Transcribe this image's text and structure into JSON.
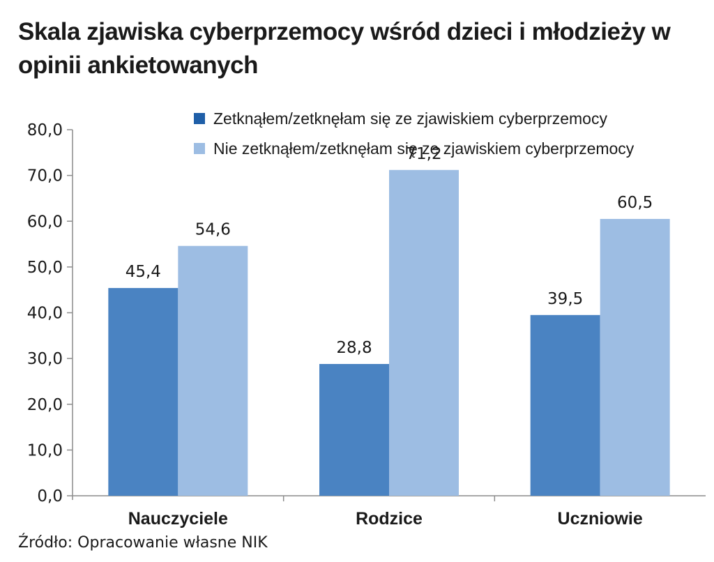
{
  "chart_data": {
    "type": "bar",
    "title": "Skala zjawiska cyberprzemocy wśród dzieci i młodzieży w opinii ankietowanych",
    "xlabel": "",
    "ylabel": "",
    "categories": [
      "Nauczyciele",
      "Rodzice",
      "Uczniowie"
    ],
    "series": [
      {
        "name": "Zetknąłem/zetknęłam się ze zjawiskiem cyberprzemocy",
        "color": "#4a83c2",
        "legend_color": "#1f5fa8",
        "values": [
          45.4,
          28.8,
          39.5
        ],
        "labels": [
          "45,4",
          "28,8",
          "39,5"
        ]
      },
      {
        "name": "Nie zetknąłem/zetknęłam się ze zjawiskiem cyberprzemocy",
        "color": "#9dbde3",
        "legend_color": "#9dbde3",
        "values": [
          54.6,
          71.2,
          60.5
        ],
        "labels": [
          "54,6",
          "71,2",
          "60,5"
        ]
      }
    ],
    "ylim": [
      0,
      80
    ],
    "yticks": [
      0,
      10,
      20,
      30,
      40,
      50,
      60,
      70,
      80
    ],
    "ytick_labels": [
      "0,0",
      "10,0",
      "20,0",
      "30,0",
      "40,0",
      "50,0",
      "60,0",
      "70,0",
      "80,0"
    ],
    "grid": false,
    "legend_position": "top-right"
  },
  "header": {
    "title": "Skala zjawiska cyberprzemocy wśród dzieci i młodzieży w opinii ankietowanych"
  },
  "footer": {
    "source": "Źródło: Opracowanie własne NIK"
  }
}
